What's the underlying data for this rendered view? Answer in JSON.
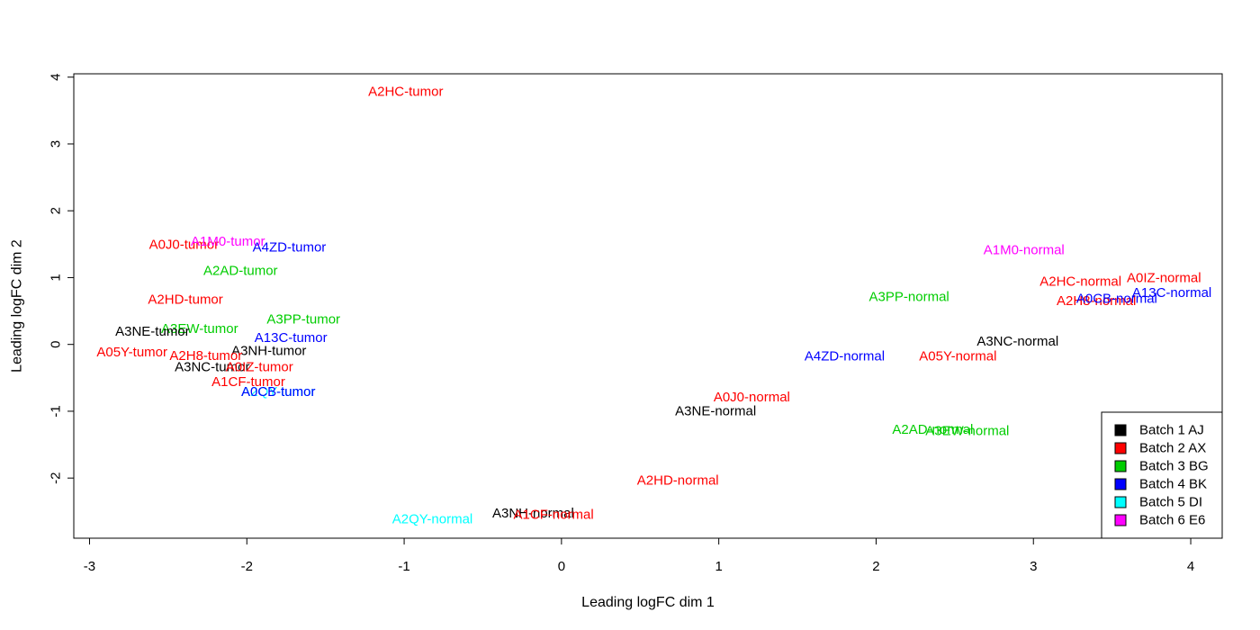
{
  "chart_data": {
    "type": "scatter",
    "title": "",
    "xlabel": "Leading logFC dim 1",
    "ylabel": "Leading logFC dim 2",
    "xlim": [
      -3.1,
      4.2
    ],
    "ylim": [
      -2.9,
      4.05
    ],
    "xticks": [
      "-3",
      "-2",
      "-1",
      "0",
      "1",
      "2",
      "3",
      "4"
    ],
    "yticks": [
      "-2",
      "-1",
      "0",
      "1",
      "2",
      "3",
      "4"
    ],
    "grid": false,
    "legend_position": "bottom-right",
    "series": [
      {
        "name": "Batch 1 AJ",
        "color": "#000000"
      },
      {
        "name": "Batch 2 AX",
        "color": "#ff0000"
      },
      {
        "name": "Batch 3 BG",
        "color": "#00cd00"
      },
      {
        "name": "Batch 4 BK",
        "color": "#0000ff"
      },
      {
        "name": "Batch 5 DI",
        "color": "#00ffff"
      },
      {
        "name": "Batch 6 E6",
        "color": "#ff00ff"
      }
    ],
    "points": [
      {
        "label": "A2HC-tumor",
        "x": -0.99,
        "y": 3.78,
        "batch": 1
      },
      {
        "label": "A0J0-tumor",
        "x": -2.4,
        "y": 1.49,
        "batch": 1
      },
      {
        "label": "A1M0-tumor",
        "x": -2.12,
        "y": 1.54,
        "batch": 5
      },
      {
        "label": "A4ZD-tumor",
        "x": -1.73,
        "y": 1.45,
        "batch": 3
      },
      {
        "label": "A2AD-tumor",
        "x": -2.04,
        "y": 1.1,
        "batch": 2
      },
      {
        "label": "A2HD-tumor",
        "x": -2.39,
        "y": 0.67,
        "batch": 1
      },
      {
        "label": "A3PP-tumor",
        "x": -1.64,
        "y": 0.37,
        "batch": 2
      },
      {
        "label": "A3EW-tumor",
        "x": -2.3,
        "y": 0.23,
        "batch": 2
      },
      {
        "label": "A3NE-tumor",
        "x": -2.6,
        "y": 0.19,
        "batch": 0
      },
      {
        "label": "A13C-tumor",
        "x": -1.72,
        "y": 0.1,
        "batch": 3
      },
      {
        "label": "A05Y-tumor",
        "x": -2.73,
        "y": -0.12,
        "batch": 1
      },
      {
        "label": "A3NH-tumor",
        "x": -1.86,
        "y": -0.1,
        "batch": 0
      },
      {
        "label": "A2H8-tumor",
        "x": -2.26,
        "y": -0.17,
        "batch": 1
      },
      {
        "label": "A3NC-tumor",
        "x": -2.22,
        "y": -0.34,
        "batch": 0
      },
      {
        "label": "A0IZ-tumor",
        "x": -1.92,
        "y": -0.34,
        "batch": 1
      },
      {
        "label": "A1CF-tumor",
        "x": -1.99,
        "y": -0.56,
        "batch": 1
      },
      {
        "label": "A2QY-tumor",
        "x": -1.8,
        "y": -0.71,
        "batch": 4
      },
      {
        "label": "A0CB-tumor",
        "x": -1.8,
        "y": -0.71,
        "batch": 3
      },
      {
        "label": "A1M0-normal",
        "x": 2.94,
        "y": 1.41,
        "batch": 5
      },
      {
        "label": "A0IZ-normal",
        "x": 3.83,
        "y": 0.99,
        "batch": 1
      },
      {
        "label": "A2HC-normal",
        "x": 3.3,
        "y": 0.94,
        "batch": 1
      },
      {
        "label": "A13C-normal",
        "x": 3.88,
        "y": 0.77,
        "batch": 3
      },
      {
        "label": "A2H8-normal",
        "x": 3.4,
        "y": 0.65,
        "batch": 1
      },
      {
        "label": "A0CB-normal",
        "x": 3.53,
        "y": 0.68,
        "batch": 3
      },
      {
        "label": "A3PP-normal",
        "x": 2.21,
        "y": 0.71,
        "batch": 2
      },
      {
        "label": "A3NC-normal",
        "x": 2.9,
        "y": 0.04,
        "batch": 0
      },
      {
        "label": "A4ZD-normal",
        "x": 1.8,
        "y": -0.18,
        "batch": 3
      },
      {
        "label": "A05Y-normal",
        "x": 2.52,
        "y": -0.18,
        "batch": 1
      },
      {
        "label": "A0J0-normal",
        "x": 1.21,
        "y": -0.79,
        "batch": 1
      },
      {
        "label": "A3NE-normal",
        "x": 0.98,
        "y": -1.0,
        "batch": 0
      },
      {
        "label": "A2AD-normal",
        "x": 2.36,
        "y": -1.28,
        "batch": 2
      },
      {
        "label": "A3EW-normal",
        "x": 2.58,
        "y": -1.3,
        "batch": 2
      },
      {
        "label": "A2HD-normal",
        "x": 0.74,
        "y": -2.04,
        "batch": 1
      },
      {
        "label": "A3NH-normal",
        "x": -0.18,
        "y": -2.53,
        "batch": 0
      },
      {
        "label": "A1CF-normal",
        "x": -0.05,
        "y": -2.55,
        "batch": 1
      },
      {
        "label": "A2QY-normal",
        "x": -0.82,
        "y": -2.62,
        "batch": 4
      }
    ]
  }
}
